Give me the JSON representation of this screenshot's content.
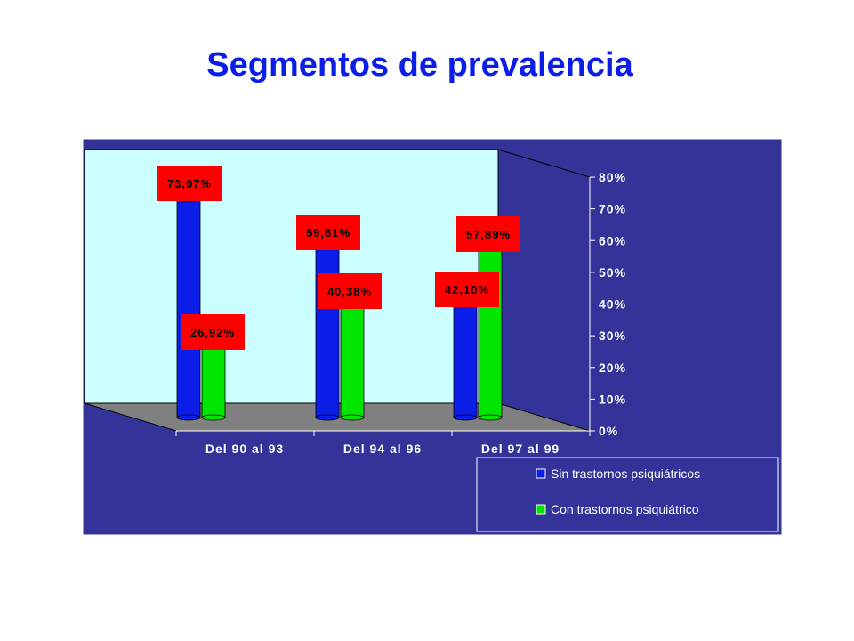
{
  "chart_data": {
    "type": "bar",
    "title": "Segmentos de prevalencia",
    "categories": [
      "Del 90 al 93",
      "Del 94 al 96",
      "Del 97 al 99"
    ],
    "series": [
      {
        "name": "Sin trastornos psiquiátricos",
        "values": [
          73.07,
          59.61,
          42.1
        ],
        "labels": [
          "73,07%",
          "59,61%",
          "42,10%"
        ],
        "color": "#0a1ee8"
      },
      {
        "name": "Con trastornos psiquiátrico",
        "values": [
          26.92,
          40.38,
          57.89
        ],
        "labels": [
          "26,92%",
          "40,38%",
          "57,89%"
        ],
        "color": "#00e600"
      }
    ],
    "yticks": [
      "0%",
      "10%",
      "20%",
      "30%",
      "40%",
      "50%",
      "60%",
      "70%",
      "80%"
    ],
    "ylim": [
      0,
      80
    ],
    "grid": false,
    "legend": "bottom-right",
    "colors": {
      "background": "#333399",
      "back_wall": "#ccffff",
      "floor": "#808080",
      "label_box": "#ff0000",
      "title": "#0a1ee8"
    }
  }
}
